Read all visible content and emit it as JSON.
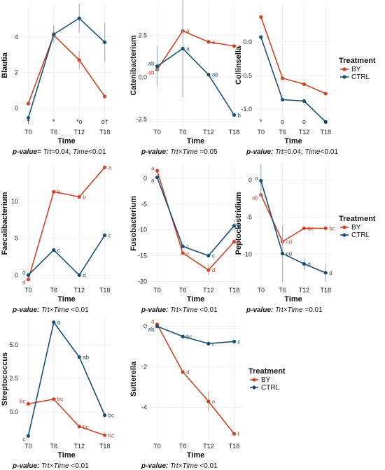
{
  "legend": {
    "title": "Treatment",
    "entries": [
      "BY",
      "CTRL"
    ]
  },
  "colors": {
    "BY": "#c8442a",
    "CTRL": "#1b4f72",
    "grid": "#ebebeb",
    "err": "#9ab2c6",
    "errBY": "#e0a38f"
  },
  "chart_data": [
    {
      "type": "line",
      "ylabel": "Blautia",
      "xlabel": "Time",
      "ylim": [
        -1.0,
        5.8
      ],
      "categories": [
        "T0",
        "T6",
        "T12",
        "T18"
      ],
      "yticks": [
        0,
        2,
        4
      ],
      "ytick_labels": [
        "0",
        "2",
        "4"
      ],
      "series": [
        {
          "name": "BY",
          "values": [
            0.25,
            4.1,
            2.7,
            0.65
          ],
          "err": [
            0,
            0.4,
            0.5,
            0
          ],
          "labels": []
        },
        {
          "name": "CTRL",
          "values": [
            -0.55,
            4.15,
            5.05,
            3.7
          ],
          "err": [
            0,
            0.5,
            0.8,
            1.1
          ],
          "labels": []
        }
      ],
      "bottom_marks": [
        "†",
        "*",
        "*ο",
        "ο†"
      ],
      "pvalue": {
        "label": "p-value=",
        "parts": [
          {
            "term": "Trt",
            "text": "=0.04; "
          },
          {
            "term": "Time",
            "text": "<0.01"
          }
        ]
      }
    },
    {
      "type": "line",
      "ylabel": "Catenibacterium",
      "xlabel": "Time",
      "ylim": [
        -2.9,
        4.3
      ],
      "categories": [
        "T0",
        "T6",
        "T12",
        "T18"
      ],
      "yticks": [
        -2.5,
        0,
        2.5
      ],
      "ytick_labels": [
        "-2.5",
        "0.0",
        "2.5"
      ],
      "series": [
        {
          "name": "BY",
          "values": [
            0.45,
            2.75,
            2.1,
            1.85
          ],
          "err": [
            0,
            0,
            0,
            0
          ],
          "labels": [
            "ab",
            "a",
            "a",
            "a"
          ]
        },
        {
          "name": "CTRL",
          "values": [
            0.65,
            1.7,
            0.15,
            -2.25
          ],
          "err": [
            1.2,
            2.9,
            0,
            0
          ],
          "labels": [
            "ab",
            "a",
            "ab",
            "b"
          ]
        }
      ],
      "bottom_marks": [],
      "pvalue": {
        "label": "p-value:",
        "parts": [
          {
            "term": "Trt×Time",
            "text": " =0.05"
          }
        ]
      }
    },
    {
      "type": "line",
      "ylabel": "Collinsella",
      "xlabel": "Time",
      "ylim": [
        -1.25,
        0.55
      ],
      "categories": [
        "T0",
        "T6",
        "T12",
        "T18"
      ],
      "yticks": [
        -1.0,
        -0.5,
        0.0
      ],
      "ytick_labels": [
        "-1.0",
        "-0.5",
        "0.0"
      ],
      "series": [
        {
          "name": "BY",
          "values": [
            0.37,
            -0.54,
            -0.63,
            -0.77
          ],
          "err": [
            0,
            0,
            0,
            0
          ],
          "labels": []
        },
        {
          "name": "CTRL",
          "values": [
            0.07,
            -0.86,
            -0.88,
            -1.19
          ],
          "err": [
            0,
            0,
            0,
            0
          ],
          "labels": []
        }
      ],
      "bottom_marks": [
        "*",
        "ο",
        "ο",
        "ο"
      ],
      "pvalue": {
        "label": "p-value:",
        "parts": [
          {
            "term": "Trt",
            "text": "=0.04; "
          },
          {
            "term": "Time",
            "text": "<0.01"
          }
        ]
      }
    },
    {
      "type": "line",
      "ylabel": "Faecalibacterium",
      "xlabel": "Time",
      "ylim": [
        -1.2,
        15.2
      ],
      "categories": [
        "T0",
        "T6",
        "T12",
        "T18"
      ],
      "yticks": [
        0,
        5,
        10
      ],
      "ytick_labels": [
        "0",
        "5",
        "10"
      ],
      "series": [
        {
          "name": "BY",
          "values": [
            -0.6,
            11.3,
            10.6,
            14.6
          ],
          "err": [
            0,
            0,
            0,
            0
          ],
          "labels": [
            "d",
            "b",
            "b",
            "a"
          ]
        },
        {
          "name": "CTRL",
          "values": [
            0.0,
            3.4,
            0.0,
            5.4
          ],
          "err": [
            0,
            0,
            0,
            0
          ],
          "labels": [
            "d",
            "c",
            "d",
            "c"
          ]
        }
      ],
      "bottom_marks": [],
      "pvalue": {
        "label": "p-value:",
        "parts": [
          {
            "term": "Trt×Time",
            "text": " <0.01"
          }
        ]
      }
    },
    {
      "type": "line",
      "ylabel": "Fusobacterium",
      "xlabel": "Time",
      "ylim": [
        -20.5,
        3.0
      ],
      "categories": [
        "T0",
        "T6",
        "T12",
        "T18"
      ],
      "yticks": [
        -20,
        -15,
        -10,
        -5,
        0
      ],
      "ytick_labels": [
        "-20",
        "-15",
        "-10",
        "-5",
        "0"
      ],
      "series": [
        {
          "name": "BY",
          "values": [
            1.5,
            -14.5,
            -17.8,
            -12.3
          ],
          "err": [
            0,
            0,
            1.0,
            0
          ],
          "labels": [
            "a",
            "c",
            "d",
            "c"
          ]
        },
        {
          "name": "CTRL",
          "values": [
            0.2,
            -13.2,
            -15.0,
            -9.2
          ],
          "err": [
            0,
            0,
            0,
            1.2
          ],
          "labels": [
            "a",
            "c",
            "c",
            "b"
          ]
        }
      ],
      "bottom_marks": [],
      "pvalue": {
        "label": "p-value:",
        "parts": [
          {
            "term": "Trt×Time",
            "text": " <0.01"
          }
        ]
      }
    },
    {
      "type": "line",
      "ylabel": "Peptoclostridium",
      "xlabel": "Time",
      "ylim": [
        -14.0,
        2.3
      ],
      "categories": [
        "T0",
        "T6",
        "T12",
        "T18"
      ],
      "yticks": [
        -10,
        -5,
        0
      ],
      "ytick_labels": [
        "-10",
        "-5",
        "0"
      ],
      "series": [
        {
          "name": "BY",
          "values": [
            -2.0,
            -8.3,
            -6.5,
            -6.5
          ],
          "err": [
            0,
            0,
            0,
            0
          ],
          "labels": [
            "ab",
            "cd",
            "bc",
            "bc"
          ]
        },
        {
          "name": "CTRL",
          "values": [
            -0.1,
            -9.9,
            -11.3,
            -12.5
          ],
          "err": [
            2.2,
            3.8,
            0.8,
            1.2
          ],
          "labels": [
            "a",
            "cd",
            "d",
            "d"
          ]
        }
      ],
      "bottom_marks": [],
      "pvalue": {
        "label": "p-value:",
        "parts": [
          {
            "term": "Trt×Time",
            "text": " =0.01"
          }
        ]
      }
    },
    {
      "type": "line",
      "ylabel": "Streptococcus",
      "xlabel": "Time",
      "ylim": [
        -2.1,
        7.0
      ],
      "categories": [
        "T0",
        "T6",
        "T12",
        "T18"
      ],
      "yticks": [
        0,
        2.5,
        5.0
      ],
      "ytick_labels": [
        "0.0",
        "2.5",
        "5.0"
      ],
      "series": [
        {
          "name": "BY",
          "values": [
            0.6,
            0.95,
            -1.1,
            -1.75
          ],
          "err": [
            0,
            0,
            0,
            0
          ],
          "labels": [
            "bc",
            "bc",
            "bc",
            "bc"
          ]
        },
        {
          "name": "CTRL",
          "values": [
            -1.8,
            6.7,
            4.1,
            -0.25
          ],
          "err": [
            0,
            0,
            0,
            0
          ],
          "labels": [
            "c",
            "a",
            "ab",
            "bc"
          ]
        }
      ],
      "bottom_marks": [],
      "pvalue": {
        "label": "p-value:",
        "parts": [
          {
            "term": "Trt×Time",
            "text": " <0.01"
          }
        ]
      }
    },
    {
      "type": "line",
      "ylabel": "Sutterella",
      "xlabel": "Time",
      "ylim": [
        -5.6,
        0.4
      ],
      "categories": [
        "T0",
        "T6",
        "T12",
        "T18"
      ],
      "yticks": [
        -4,
        -2,
        0
      ],
      "ytick_labels": [
        "-4",
        "-2",
        "0"
      ],
      "series": [
        {
          "name": "BY",
          "values": [
            0.1,
            -2.25,
            -3.7,
            -5.3
          ],
          "err": [
            0,
            0,
            0.5,
            0
          ],
          "labels": [
            "a",
            "d",
            "e",
            "f"
          ]
        },
        {
          "name": "CTRL",
          "values": [
            0.0,
            -0.5,
            -0.85,
            -0.75
          ],
          "err": [
            0,
            0,
            0,
            0
          ],
          "labels": [
            "ab",
            "bc",
            "c",
            "c"
          ]
        }
      ],
      "bottom_marks": [],
      "pvalue": {
        "label": "p-value:",
        "parts": [
          {
            "term": "Trt×Time",
            "text": " <0.01"
          }
        ]
      }
    }
  ]
}
